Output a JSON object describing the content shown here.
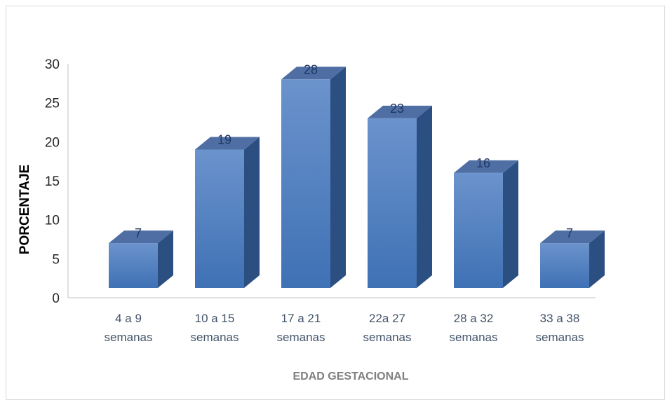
{
  "chart_data": {
    "type": "bar",
    "style": "3d-column",
    "categories": [
      [
        "4 a 9",
        "semanas"
      ],
      [
        "10 a 15",
        "semanas"
      ],
      [
        "17 a 21",
        "semanas"
      ],
      [
        "22a 27",
        "semanas"
      ],
      [
        "28 a 32",
        "semanas"
      ],
      [
        "33 a 38",
        "semanas"
      ]
    ],
    "values": [
      7,
      19,
      28,
      23,
      16,
      7
    ],
    "data_labels": [
      "7",
      "19",
      "28",
      "23",
      "16",
      "7"
    ],
    "xlabel": "EDAD GESTACIONAL",
    "ylabel": "PORCENTAJE",
    "ylim": [
      0,
      30
    ],
    "yticks": [
      0,
      5,
      10,
      15,
      20,
      25,
      30
    ],
    "grid": false,
    "legend": "none",
    "colors": {
      "front_top": "#6b93cc",
      "front_bottom": "#3f71b5",
      "side": "#2c4f82",
      "top": "#4f6ea3",
      "axis": "#bfbfbf"
    }
  }
}
